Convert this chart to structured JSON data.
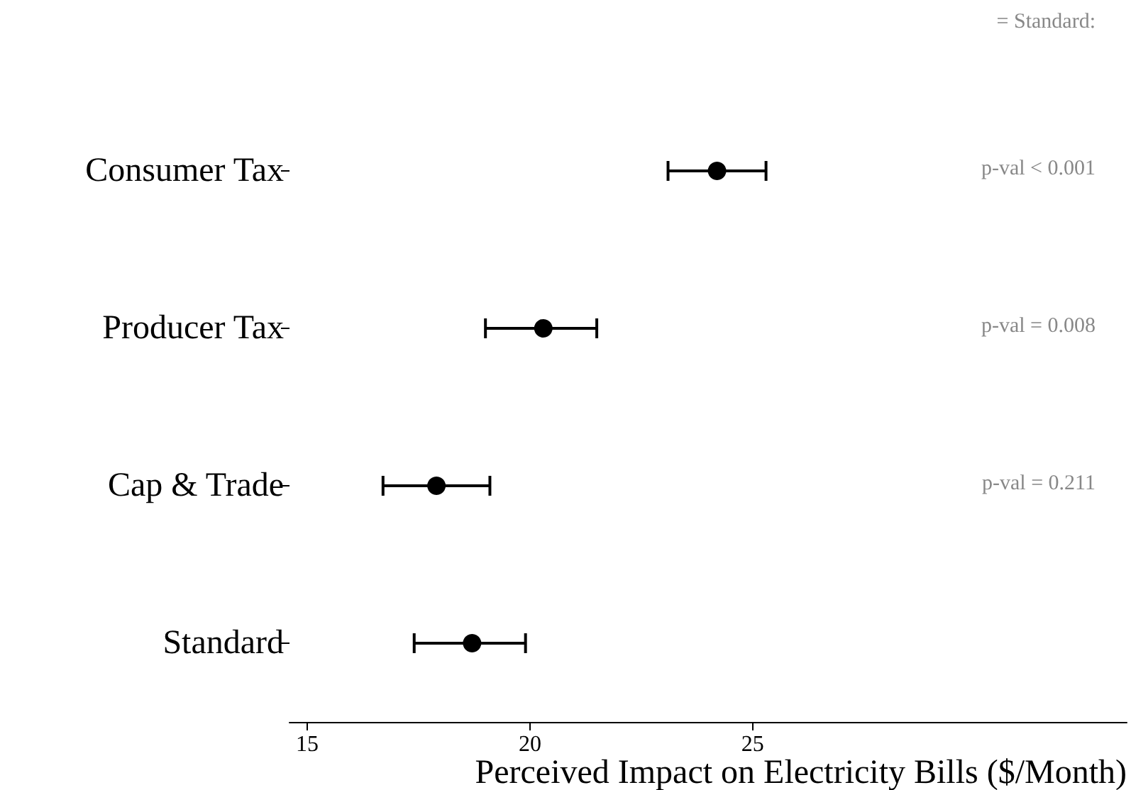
{
  "chart_data": {
    "type": "scatter",
    "orientation": "horizontal",
    "xlabel": "Perceived Impact on Electricity Bills ($/Month)",
    "categories": [
      "Consumer Tax",
      "Producer Tax",
      "Cap & Trade",
      "Standard"
    ],
    "values": [
      24.2,
      20.3,
      17.9,
      18.7
    ],
    "errors": [
      [
        23.1,
        25.3
      ],
      [
        19.0,
        21.5
      ],
      [
        16.7,
        19.1
      ],
      [
        17.4,
        19.9
      ]
    ],
    "color": "#000000",
    "marker": "circle",
    "xlim": [
      14.6,
      33.4
    ],
    "xticks": [
      15,
      20,
      25
    ],
    "grid": false,
    "annotations": [
      "= Standard:",
      "p-val < 0.001",
      "p-val = 0.008",
      "p-val = 0.211"
    ]
  }
}
